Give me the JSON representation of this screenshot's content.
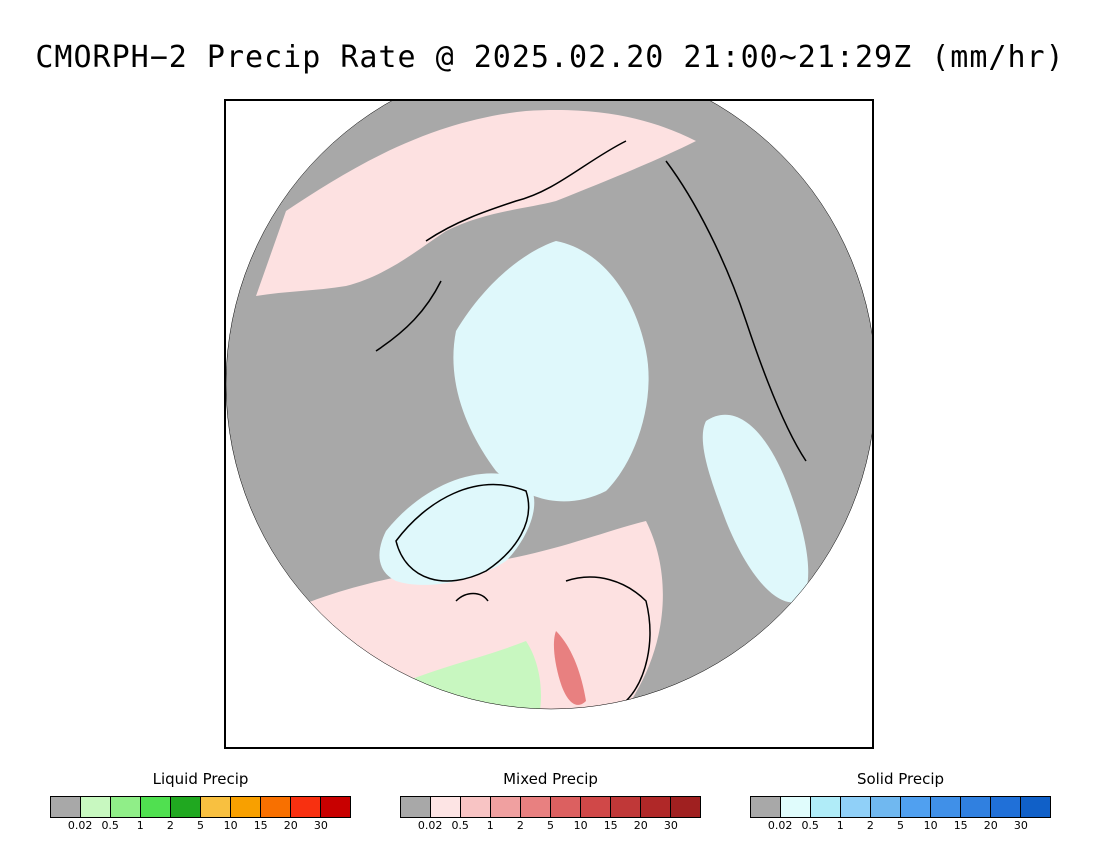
{
  "title": "CMORPH−2 Precip Rate @ 2025.02.20 21:00~21:29Z (mm/hr)",
  "map": {
    "projection": "north polar stereographic",
    "colors": {
      "no_precip": "#a8a8a8",
      "mixed_light": "#fde1e1",
      "solid_light": "#dff8fb",
      "liquid_light": "#c8f7c0",
      "coastline": "#000000"
    }
  },
  "legends": [
    {
      "label": "Liquid Precip",
      "colors": [
        "#a8a8a8",
        "#c8f8c0",
        "#90ee88",
        "#50e050",
        "#20a820",
        "#f8c040",
        "#f8a000",
        "#f87000",
        "#f83010",
        "#c80000"
      ],
      "ticks": [
        "0.02",
        "0.5",
        "1",
        "2",
        "5",
        "10",
        "15",
        "20",
        "30"
      ]
    },
    {
      "label": "Mixed Precip",
      "colors": [
        "#a8a8a8",
        "#fde4e4",
        "#f8c4c4",
        "#f0a0a0",
        "#e88080",
        "#dc6060",
        "#d04848",
        "#c03838",
        "#b02828",
        "#a02020"
      ],
      "ticks": [
        "0.02",
        "0.5",
        "1",
        "2",
        "5",
        "10",
        "15",
        "20",
        "30"
      ]
    },
    {
      "label": "Solid Precip",
      "colors": [
        "#a8a8a8",
        "#e0fcfc",
        "#b0ecf8",
        "#90d0f8",
        "#70b8f0",
        "#50a0f0",
        "#4090e8",
        "#3080e0",
        "#2070d8",
        "#1060c8"
      ],
      "ticks": [
        "0.02",
        "0.5",
        "1",
        "2",
        "5",
        "10",
        "15",
        "20",
        "30"
      ]
    }
  ]
}
